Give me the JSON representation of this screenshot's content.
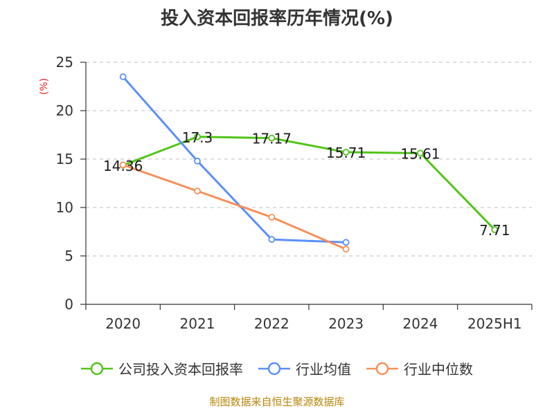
{
  "title": "投入资本回报率历年情况(%)",
  "source_note": "制图数据来自恒生聚源数据库",
  "colors": {
    "company": "#52c41a",
    "industry_avg": "#5b8ff9",
    "industry_median": "#f6905a",
    "unit_label": "#e02020",
    "source_note": "#b8860b"
  },
  "chart_data": {
    "type": "line",
    "title": "投入资本回报率历年情况(%)",
    "ylabel": "(%)",
    "xlabel": "",
    "categories": [
      "2020",
      "2021",
      "2022",
      "2023",
      "2024",
      "2025H1"
    ],
    "ylim": [
      0,
      25
    ],
    "yticks": [
      0,
      5,
      10,
      15,
      20,
      25
    ],
    "grid": true,
    "legend_position": "bottom",
    "series": [
      {
        "name": "公司投入资本回报率",
        "values": [
          14.36,
          17.3,
          17.17,
          15.71,
          15.61,
          7.71
        ],
        "labels": [
          "14.36",
          "17.3",
          "17.17",
          "15.71",
          "15.61",
          "7.71"
        ],
        "show_labels": true
      },
      {
        "name": "行业均值",
        "values": [
          23.5,
          14.8,
          6.7,
          6.4,
          null,
          null
        ],
        "show_labels": false
      },
      {
        "name": "行业中位数",
        "values": [
          14.4,
          11.7,
          9.0,
          5.7,
          null,
          null
        ],
        "show_labels": false
      }
    ]
  }
}
